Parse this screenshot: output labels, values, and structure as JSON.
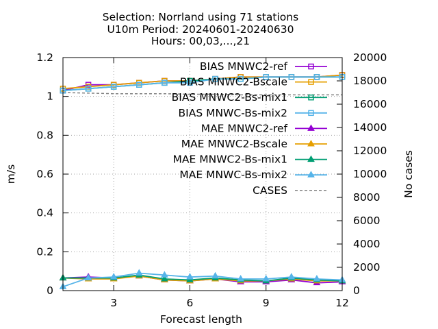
{
  "chart_data": {
    "type": "line",
    "title": [
      "Selection: Norrland using    71 stations",
      "U10m   Period: 20240601-20240630",
      "Hours: 00,03,...,21"
    ],
    "xlabel": "Forecast length",
    "ylabel": "m/s",
    "y2label": "No cases",
    "xlim": [
      1,
      12
    ],
    "ylim": [
      0,
      1.2
    ],
    "y2lim": [
      0,
      20000
    ],
    "xticks": [
      3,
      6,
      9,
      12
    ],
    "yticks": [
      0,
      0.2,
      0.4,
      0.6,
      0.8,
      1,
      1.2
    ],
    "yticklabels": [
      "0",
      "0.2",
      "0.4",
      "0.6",
      "0.8",
      "1",
      "1.2"
    ],
    "y2ticks": [
      0,
      2000,
      4000,
      6000,
      8000,
      10000,
      12000,
      14000,
      16000,
      18000,
      20000
    ],
    "grid": true,
    "legend_position": "top-right",
    "x": [
      1,
      2,
      3,
      4,
      5,
      6,
      7,
      8,
      9,
      10,
      11,
      12
    ],
    "series": [
      {
        "name": "BIAS MNWC2-ref",
        "axis": "y",
        "color": "#9400d3",
        "marker": "square-open",
        "values": [
          1.03,
          1.06,
          1.06,
          1.07,
          1.08,
          1.08,
          1.09,
          1.1,
          1.1,
          1.1,
          1.1,
          1.11
        ]
      },
      {
        "name": "BIAS MNWC2-Bscale",
        "axis": "y",
        "color": "#e69f00",
        "marker": "square-open",
        "values": [
          1.04,
          1.05,
          1.06,
          1.07,
          1.08,
          1.08,
          1.09,
          1.1,
          1.1,
          1.1,
          1.1,
          1.11
        ]
      },
      {
        "name": "BIAS MNWC2-Bs-mix1",
        "axis": "y",
        "color": "#009e73",
        "marker": "square-open",
        "values": [
          1.03,
          1.04,
          1.05,
          1.06,
          1.07,
          1.08,
          1.09,
          1.09,
          1.1,
          1.1,
          1.1,
          1.1
        ]
      },
      {
        "name": "BIAS MNWC-Bs-mix2",
        "axis": "y",
        "color": "#56b4e9",
        "marker": "square-open",
        "values": [
          1.03,
          1.04,
          1.05,
          1.06,
          1.07,
          1.07,
          1.09,
          1.09,
          1.1,
          1.1,
          1.1,
          1.1
        ]
      },
      {
        "name": "MAE MNWC2-ref",
        "axis": "y",
        "color": "#9400d3",
        "marker": "triangle-filled",
        "values": [
          0.065,
          0.07,
          0.065,
          0.075,
          0.055,
          0.05,
          0.06,
          0.045,
          0.045,
          0.055,
          0.04,
          0.045
        ]
      },
      {
        "name": "MAE MNWC2-Bscale",
        "axis": "y",
        "color": "#e69f00",
        "marker": "triangle-filled",
        "values": [
          0.065,
          0.06,
          0.06,
          0.075,
          0.055,
          0.05,
          0.06,
          0.05,
          0.05,
          0.06,
          0.05,
          0.05
        ]
      },
      {
        "name": "MAE MNWC2-Bs-mix1",
        "axis": "y",
        "color": "#009e73",
        "marker": "triangle-filled",
        "values": [
          0.065,
          0.065,
          0.065,
          0.08,
          0.06,
          0.055,
          0.065,
          0.055,
          0.05,
          0.065,
          0.055,
          0.05
        ]
      },
      {
        "name": "MAE MNWC-Bs-mix2",
        "axis": "y",
        "color": "#56b4e9",
        "marker": "triangle-filled",
        "values": [
          0.02,
          0.065,
          0.07,
          0.09,
          0.08,
          0.07,
          0.075,
          0.06,
          0.06,
          0.07,
          0.06,
          0.055
        ]
      },
      {
        "name": "CASES",
        "axis": "y2",
        "color": "#808080",
        "marker": "none",
        "dash": true,
        "values": [
          17000,
          16950,
          16900,
          16900,
          16900,
          16850,
          16850,
          16800,
          16800,
          16800,
          16800,
          16800
        ]
      }
    ]
  }
}
